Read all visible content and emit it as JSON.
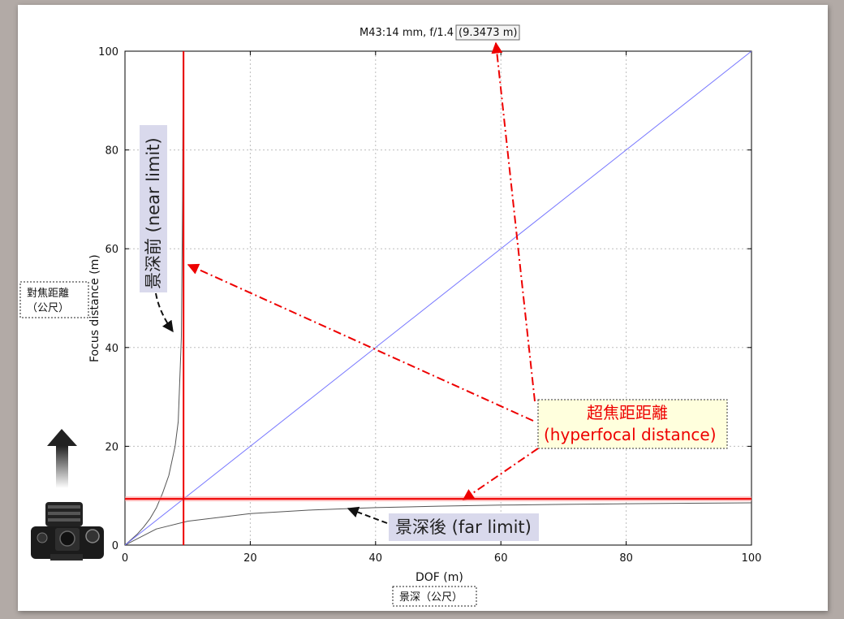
{
  "chart_data": {
    "type": "line",
    "title": "M43:14 mm, f/1.4",
    "title_value": "(9.3473 m)",
    "xlabel": "DOF (m)",
    "ylabel": "Focus distance (m)",
    "xlabel_zh": "景深（公尺）",
    "ylabel_zh_line1": "對焦距離",
    "ylabel_zh_line2": "（公尺）",
    "xlim": [
      0,
      100
    ],
    "ylim": [
      0,
      100
    ],
    "xticks": [
      "0",
      "20",
      "40",
      "60",
      "80",
      "100"
    ],
    "yticks": [
      "0",
      "20",
      "40",
      "60",
      "80",
      "100"
    ],
    "grid": true,
    "hyperfocal": 9.3473,
    "series": [
      {
        "key": "near",
        "color": "#555555",
        "points": [
          [
            0,
            0
          ],
          [
            2.0,
            2.27
          ],
          [
            3.0,
            3.69
          ],
          [
            4.0,
            5.36
          ],
          [
            5.0,
            7.52
          ],
          [
            6.0,
            10.5
          ],
          [
            7.0,
            14.1
          ],
          [
            8.0,
            20.0
          ],
          [
            8.5,
            25.0
          ],
          [
            9.0,
            42.0
          ],
          [
            9.2,
            70.0
          ],
          [
            9.3,
            100.0
          ]
        ]
      },
      {
        "key": "far",
        "color": "#555555",
        "points": [
          [
            0,
            0
          ],
          [
            5,
            3.26
          ],
          [
            10,
            4.83
          ],
          [
            20,
            6.37
          ],
          [
            30,
            7.12
          ],
          [
            40,
            7.58
          ],
          [
            50,
            7.87
          ],
          [
            60,
            8.09
          ],
          [
            70,
            8.25
          ],
          [
            80,
            8.37
          ],
          [
            90,
            8.47
          ],
          [
            100,
            8.55
          ]
        ]
      },
      {
        "key": "diagonal",
        "color": "#7777ff",
        "points": [
          [
            0,
            0
          ],
          [
            100,
            100
          ]
        ]
      }
    ],
    "annotations": {
      "near_label": "景深前 (near limit)",
      "far_label": "景深後 (far limit)",
      "hyperfocal_line1": "超焦距距離",
      "hyperfocal_line2": "(hyperfocal distance)"
    }
  }
}
